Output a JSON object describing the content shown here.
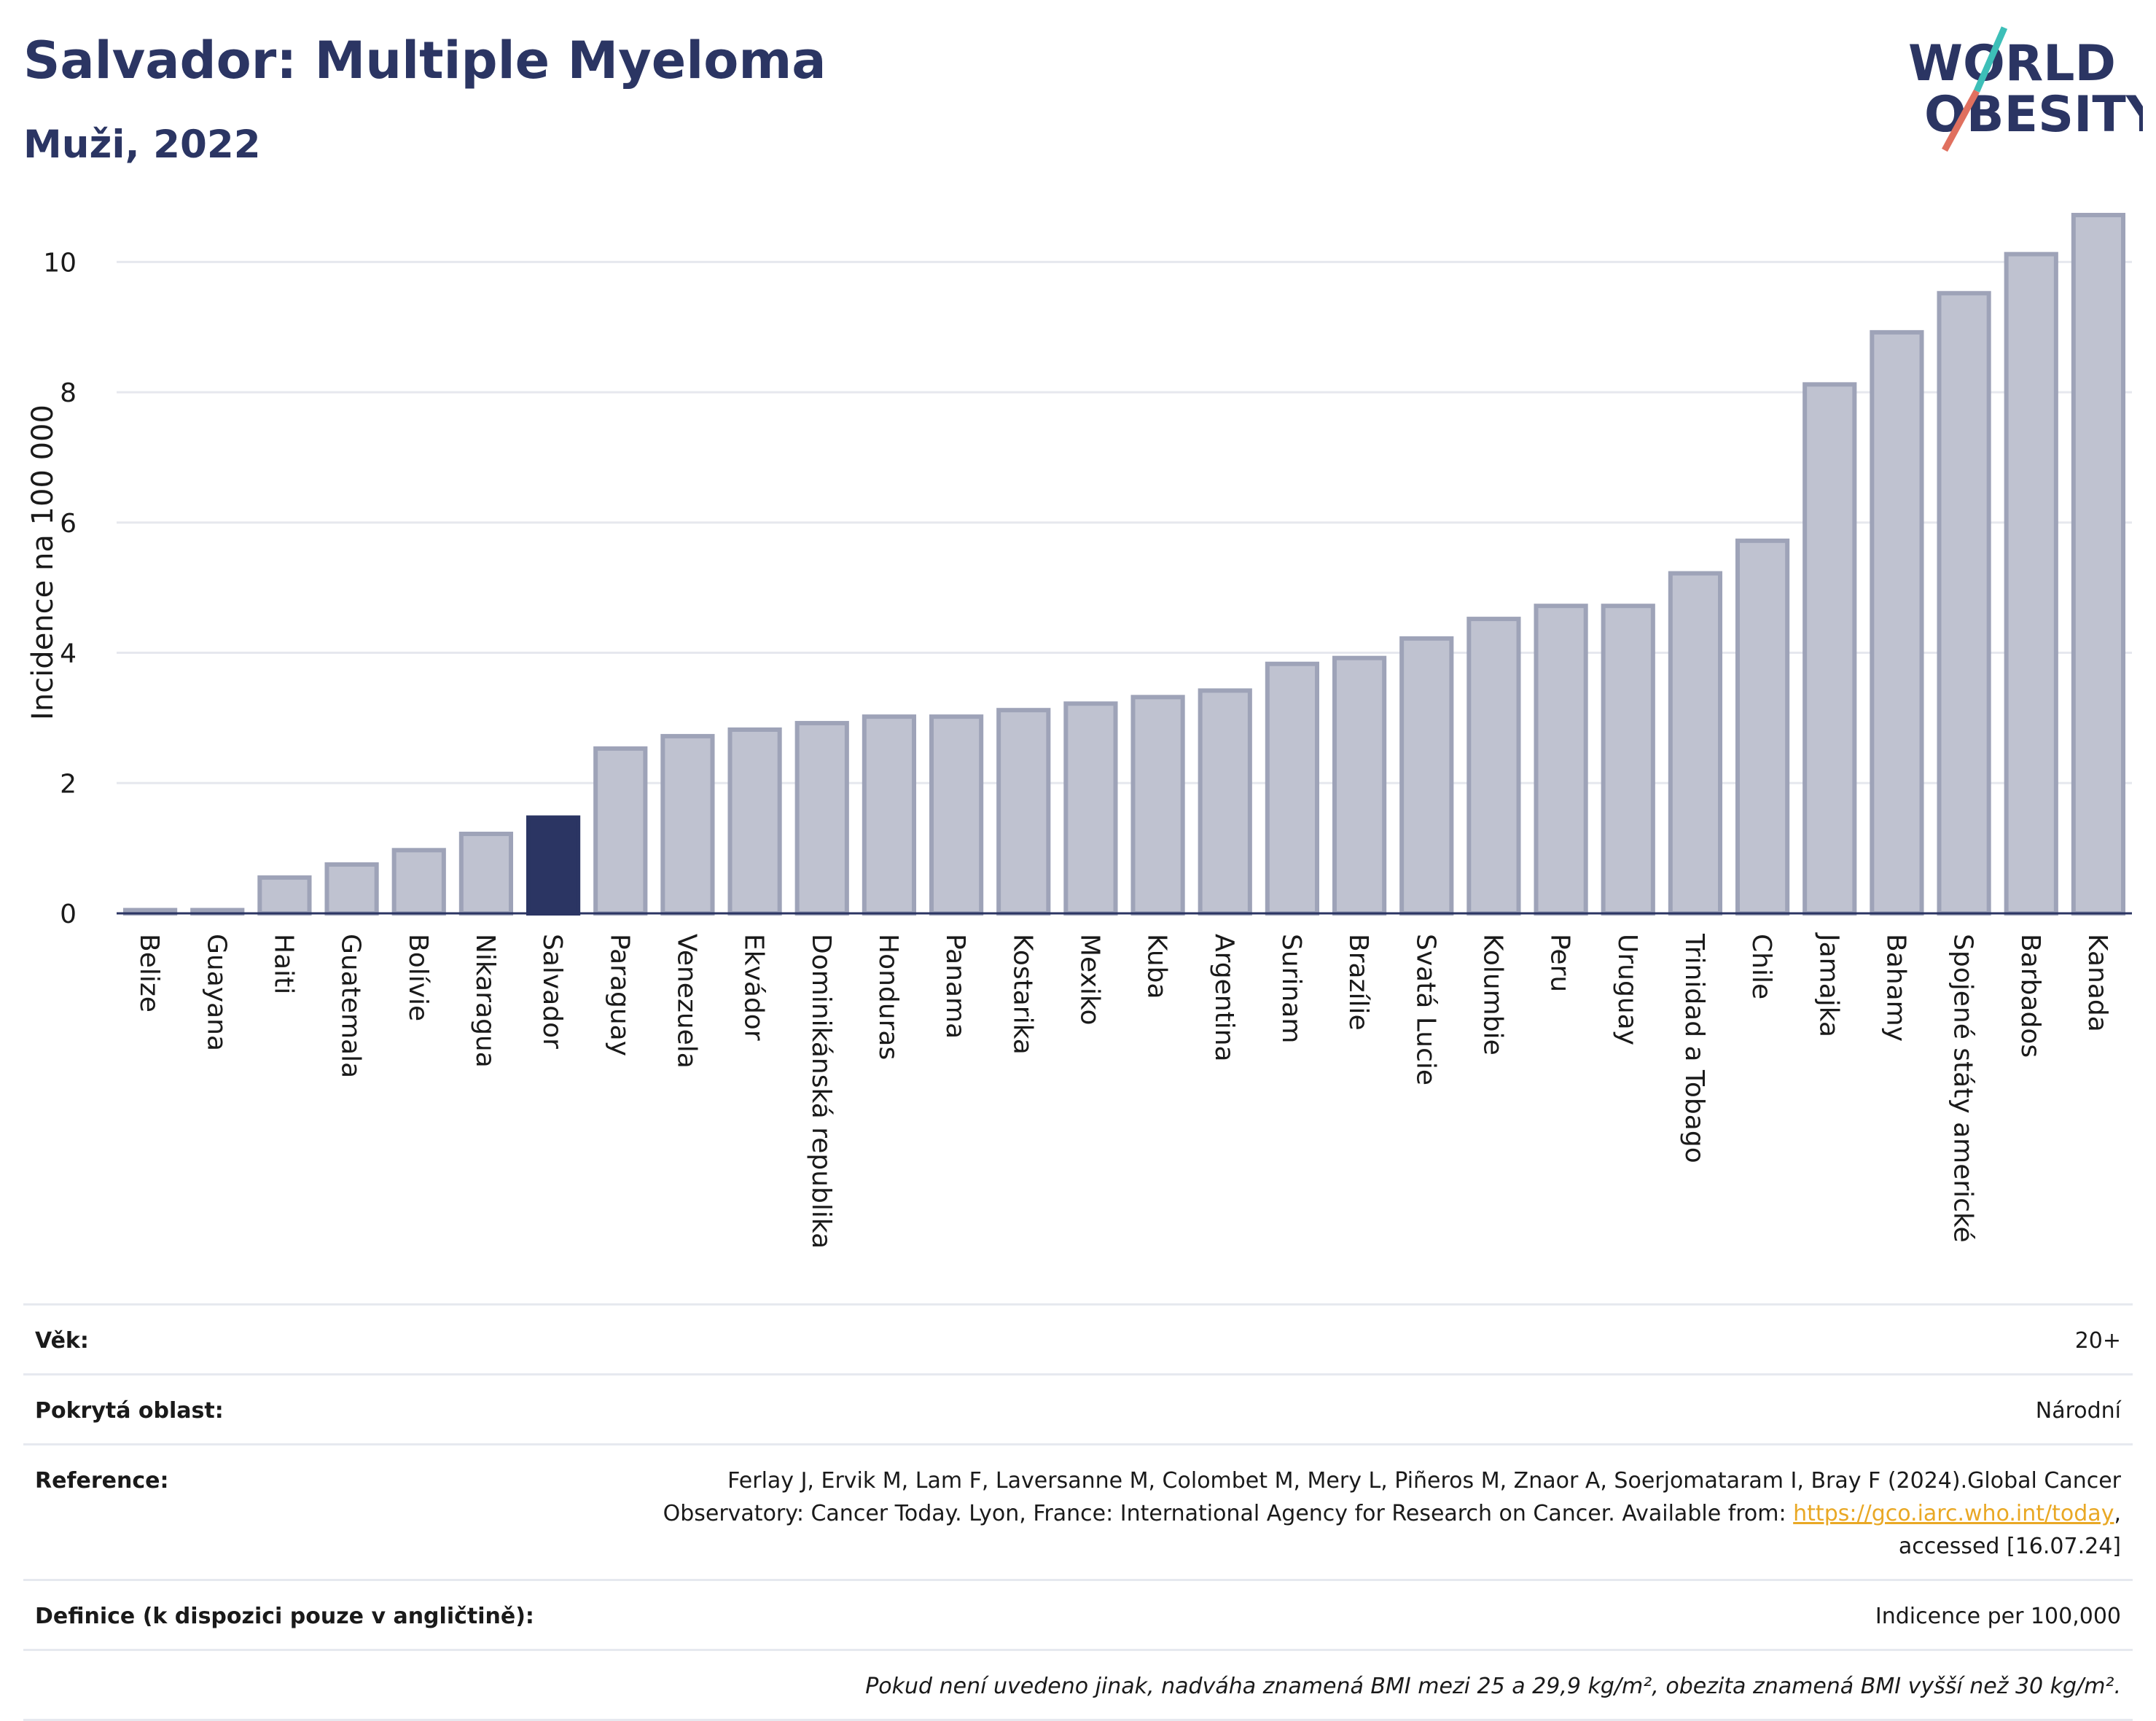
{
  "header": {
    "title": "Salvador: Multiple Myeloma",
    "subtitle": "Muži, 2022"
  },
  "logo": {
    "line1": "WORLD",
    "line2": "OBESITY",
    "slash_color_top": "#3dbfb8",
    "slash_color_bottom": "#e0705f",
    "text_color": "#2b3563"
  },
  "chart_data": {
    "type": "bar",
    "ylabel": "Incidence na 100 000",
    "ylim": [
      0,
      11
    ],
    "yticks": [
      0,
      2,
      4,
      6,
      8,
      10
    ],
    "grid": true,
    "highlight": "Salvador",
    "colors": {
      "bar": "#bfc2d0",
      "bar_edge": "#9ea3b8",
      "highlight": "#2b3563",
      "axis": "#2b3563"
    },
    "categories": [
      "Belize",
      "Guayana",
      "Haiti",
      "Guatemala",
      "Bolívie",
      "Nikaragua",
      "Salvador",
      "Paraguay",
      "Venezuela",
      "Ekvádor",
      "Dominikánská republika",
      "Honduras",
      "Panama",
      "Kostarika",
      "Mexiko",
      "Kuba",
      "Argentina",
      "Surinam",
      "Brazílie",
      "Svatá Lucie",
      "Kolumbie",
      "Peru",
      "Uruguay",
      "Trinidad a Tobago",
      "Chile",
      "Jamajka",
      "Bahamy",
      "Spojené státy americké",
      "Barbados",
      "Kanada"
    ],
    "values": [
      0.05,
      0.05,
      0.55,
      0.75,
      0.97,
      1.22,
      1.47,
      2.53,
      2.72,
      2.82,
      2.92,
      3.02,
      3.02,
      3.12,
      3.22,
      3.32,
      3.42,
      3.83,
      3.92,
      4.22,
      4.52,
      4.72,
      4.72,
      5.22,
      5.72,
      8.12,
      8.92,
      9.52,
      10.12,
      10.72
    ]
  },
  "info": {
    "age_label": "Věk:",
    "age_value": "20+",
    "area_label": "Pokrytá oblast:",
    "area_value": "Národní",
    "reference_label": "Reference:",
    "reference_text_1": "Ferlay J, Ervik M, Lam F, Laversanne M, Colombet M, Mery L, Piñeros M, Znaor A, Soerjomataram I, Bray F (2024).Global Cancer Observatory: Cancer Today. Lyon, France: International Agency for Research on Cancer. Available from: ",
    "reference_link": "https://gco.iarc.who.int/today",
    "reference_text_2": ", accessed [16.07.24]",
    "definition_label": "Definice (k dispozici pouze v angličtině):",
    "definition_value": "Indicence per 100,000",
    "note": "Pokud není uvedeno jinak, nadváha znamená BMI mezi 25 a 29,9 kg/m², obezita znamená BMI vyšší než 30 kg/m²."
  }
}
